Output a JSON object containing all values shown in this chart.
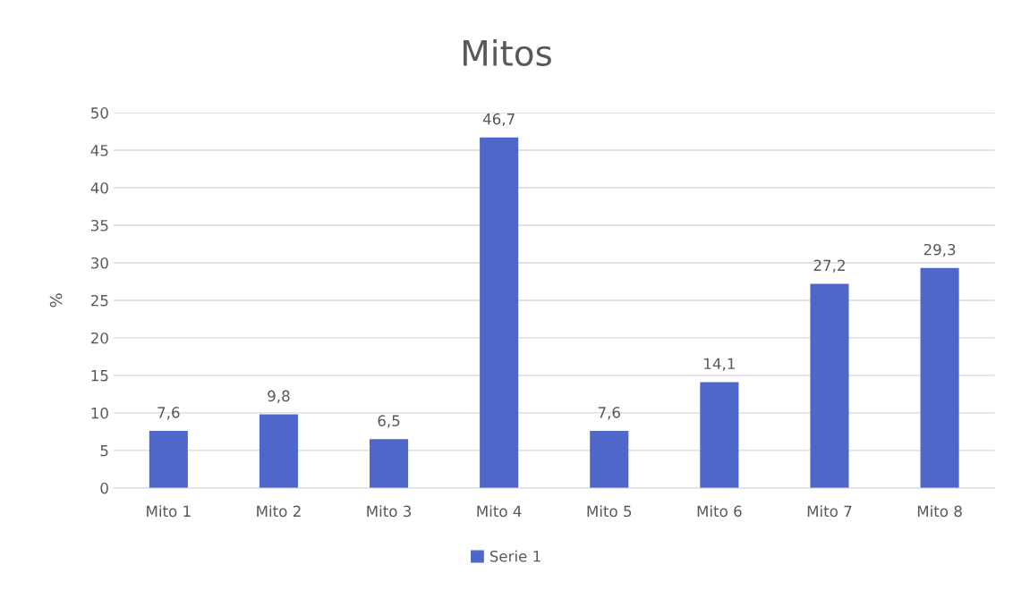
{
  "chart_data": {
    "type": "bar",
    "title": "Mitos",
    "ylabel": "%",
    "categories": [
      "Mito 1",
      "Mito 2",
      "Mito 3",
      "Mito 4",
      "Mito 5",
      "Mito 6",
      "Mito 7",
      "Mito 8"
    ],
    "series": [
      {
        "name": "Serie 1",
        "color": "#4f67c9",
        "values": [
          7.6,
          9.8,
          6.5,
          46.7,
          7.6,
          14.1,
          27.2,
          29.3
        ],
        "value_labels": [
          "7,6",
          "9,8",
          "6,5",
          "46,7",
          "7,6",
          "14,1",
          "27,2",
          "29,3"
        ]
      }
    ],
    "ylim": [
      0,
      50
    ],
    "yticks": [
      0,
      5,
      10,
      15,
      20,
      25,
      30,
      35,
      40,
      45,
      50
    ],
    "grid": "y",
    "legend": "bottom"
  }
}
